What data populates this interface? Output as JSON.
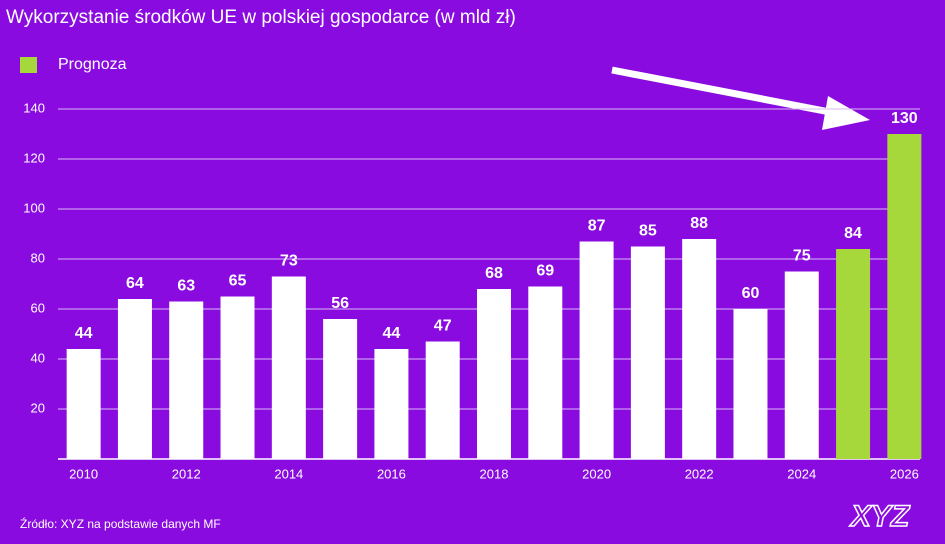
{
  "chart_data": {
    "type": "bar",
    "title": "Wykorzystanie środków UE w polskiej gospodarce (w mld zł)",
    "categories": [
      "2010",
      null,
      "2012",
      null,
      "2014",
      null,
      "2016",
      null,
      "2018",
      null,
      "2020",
      null,
      "2022",
      null,
      "2024",
      null,
      "2026"
    ],
    "values": [
      44,
      64,
      63,
      65,
      73,
      56,
      44,
      47,
      68,
      69,
      87,
      85,
      88,
      60,
      75,
      84,
      130
    ],
    "colors": [
      "#ffffff",
      "#ffffff",
      "#ffffff",
      "#ffffff",
      "#ffffff",
      "#ffffff",
      "#ffffff",
      "#ffffff",
      "#ffffff",
      "#ffffff",
      "#ffffff",
      "#ffffff",
      "#ffffff",
      "#ffffff",
      "#ffffff",
      "#a6d83b",
      "#a6d83b"
    ],
    "legend": [
      {
        "label": "Prognoza",
        "color": "#a6d83b"
      }
    ],
    "ylim": [
      0,
      140
    ],
    "yticks": [
      20,
      40,
      60,
      80,
      100,
      120,
      140
    ],
    "grid": true,
    "source": "Źródło: XYZ na podstawie danych MF",
    "logo": "XYZ"
  }
}
